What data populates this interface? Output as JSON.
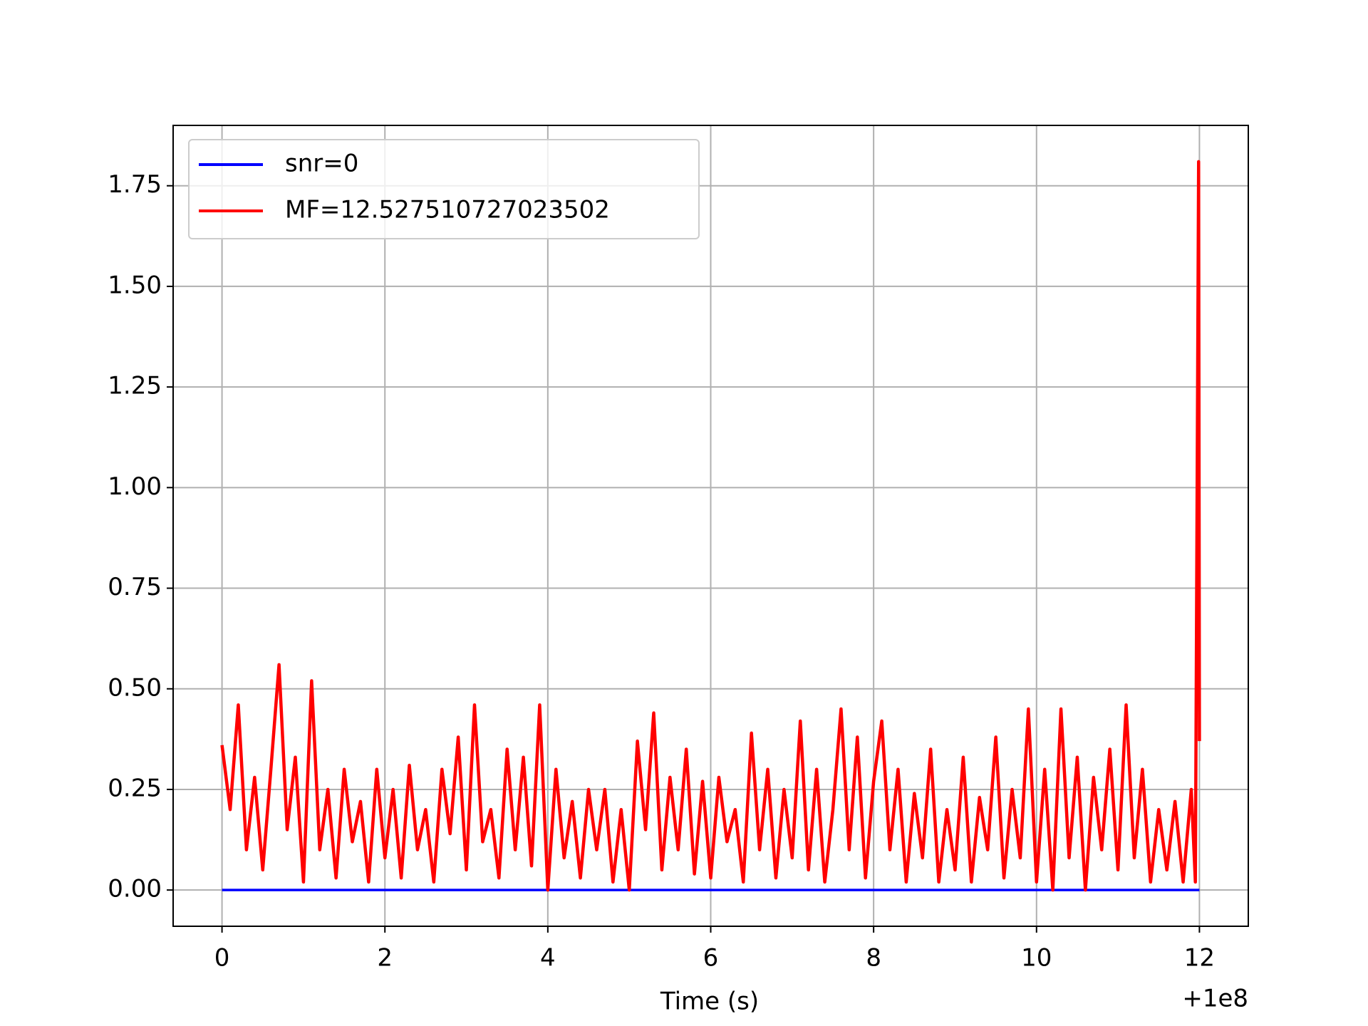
{
  "chart_data": {
    "type": "line",
    "xlabel": "Time (s)",
    "x_offset": "+1e8",
    "xlim": [
      -0.6,
      12.6
    ],
    "ylim": [
      -0.09,
      1.9
    ],
    "xticks": [
      0,
      2,
      4,
      6,
      8,
      10,
      12
    ],
    "yticks": [
      {
        "value": 0,
        "label": "0.00"
      },
      0.25,
      {
        "value": 0.5,
        "label": "0.50"
      },
      0.75,
      {
        "value": 1,
        "label": "1.00"
      },
      1.25,
      {
        "value": 1.5,
        "label": "1.50"
      },
      1.75
    ],
    "grid": true,
    "legend": "upper left",
    "series": [
      {
        "name": "snr=0",
        "color": "#0000ff",
        "x": [
          0,
          12
        ],
        "values": [
          0,
          0
        ]
      },
      {
        "name": "MF=12.527510727023502",
        "color": "#ff0000",
        "x": [
          0,
          0.1,
          0.2,
          0.3,
          0.4,
          0.5,
          0.6,
          0.7,
          0.8,
          0.9,
          1,
          1.1,
          1.2,
          1.3,
          1.4,
          1.5,
          1.6,
          1.7,
          1.8,
          1.9,
          2,
          2.1,
          2.2,
          2.3,
          2.4,
          2.5,
          2.6,
          2.7,
          2.8,
          2.9,
          3,
          3.1,
          3.2,
          3.3,
          3.4,
          3.5,
          3.6,
          3.7,
          3.8,
          3.9,
          4,
          4.1,
          4.2,
          4.3,
          4.4,
          4.5,
          4.6,
          4.7,
          4.8,
          4.9,
          5,
          5.1,
          5.2,
          5.3,
          5.4,
          5.5,
          5.6,
          5.7,
          5.8,
          5.9,
          6,
          6.1,
          6.2,
          6.3,
          6.4,
          6.5,
          6.6,
          6.7,
          6.8,
          6.9,
          7,
          7.1,
          7.2,
          7.3,
          7.4,
          7.5,
          7.6,
          7.7,
          7.8,
          7.9,
          8,
          8.1,
          8.2,
          8.3,
          8.4,
          8.5,
          8.6,
          8.7,
          8.8,
          8.9,
          9,
          9.1,
          9.2,
          9.3,
          9.4,
          9.5,
          9.6,
          9.7,
          9.8,
          9.9,
          10,
          10.1,
          10.2,
          10.3,
          10.4,
          10.5,
          10.6,
          10.7,
          10.8,
          10.9,
          11,
          11.1,
          11.2,
          11.3,
          11.4,
          11.5,
          11.6,
          11.7,
          11.8,
          11.9,
          11.95,
          11.99,
          12
        ],
        "values": [
          0.36,
          0.2,
          0.46,
          0.1,
          0.28,
          0.05,
          0.3,
          0.56,
          0.15,
          0.33,
          0.02,
          0.52,
          0.1,
          0.25,
          0.03,
          0.3,
          0.12,
          0.22,
          0.02,
          0.3,
          0.08,
          0.25,
          0.03,
          0.31,
          0.1,
          0.2,
          0.02,
          0.3,
          0.14,
          0.38,
          0.05,
          0.46,
          0.12,
          0.2,
          0.03,
          0.35,
          0.1,
          0.33,
          0.06,
          0.46,
          0,
          0.3,
          0.08,
          0.22,
          0.03,
          0.25,
          0.1,
          0.25,
          0.02,
          0.2,
          0,
          0.37,
          0.15,
          0.44,
          0.05,
          0.28,
          0.1,
          0.35,
          0.04,
          0.27,
          0.03,
          0.28,
          0.12,
          0.2,
          0.02,
          0.39,
          0.1,
          0.3,
          0.03,
          0.25,
          0.08,
          0.42,
          0.05,
          0.3,
          0.02,
          0.2,
          0.45,
          0.1,
          0.38,
          0.03,
          0.27,
          0.42,
          0.1,
          0.3,
          0.02,
          0.24,
          0.08,
          0.35,
          0.02,
          0.2,
          0.05,
          0.33,
          0.02,
          0.23,
          0.1,
          0.38,
          0.03,
          0.25,
          0.08,
          0.45,
          0.02,
          0.3,
          0,
          0.45,
          0.08,
          0.33,
          0,
          0.28,
          0.1,
          0.35,
          0.05,
          0.46,
          0.08,
          0.3,
          0.02,
          0.2,
          0.05,
          0.22,
          0.02,
          0.25,
          0.02,
          1.81,
          0.37
        ]
      }
    ]
  }
}
